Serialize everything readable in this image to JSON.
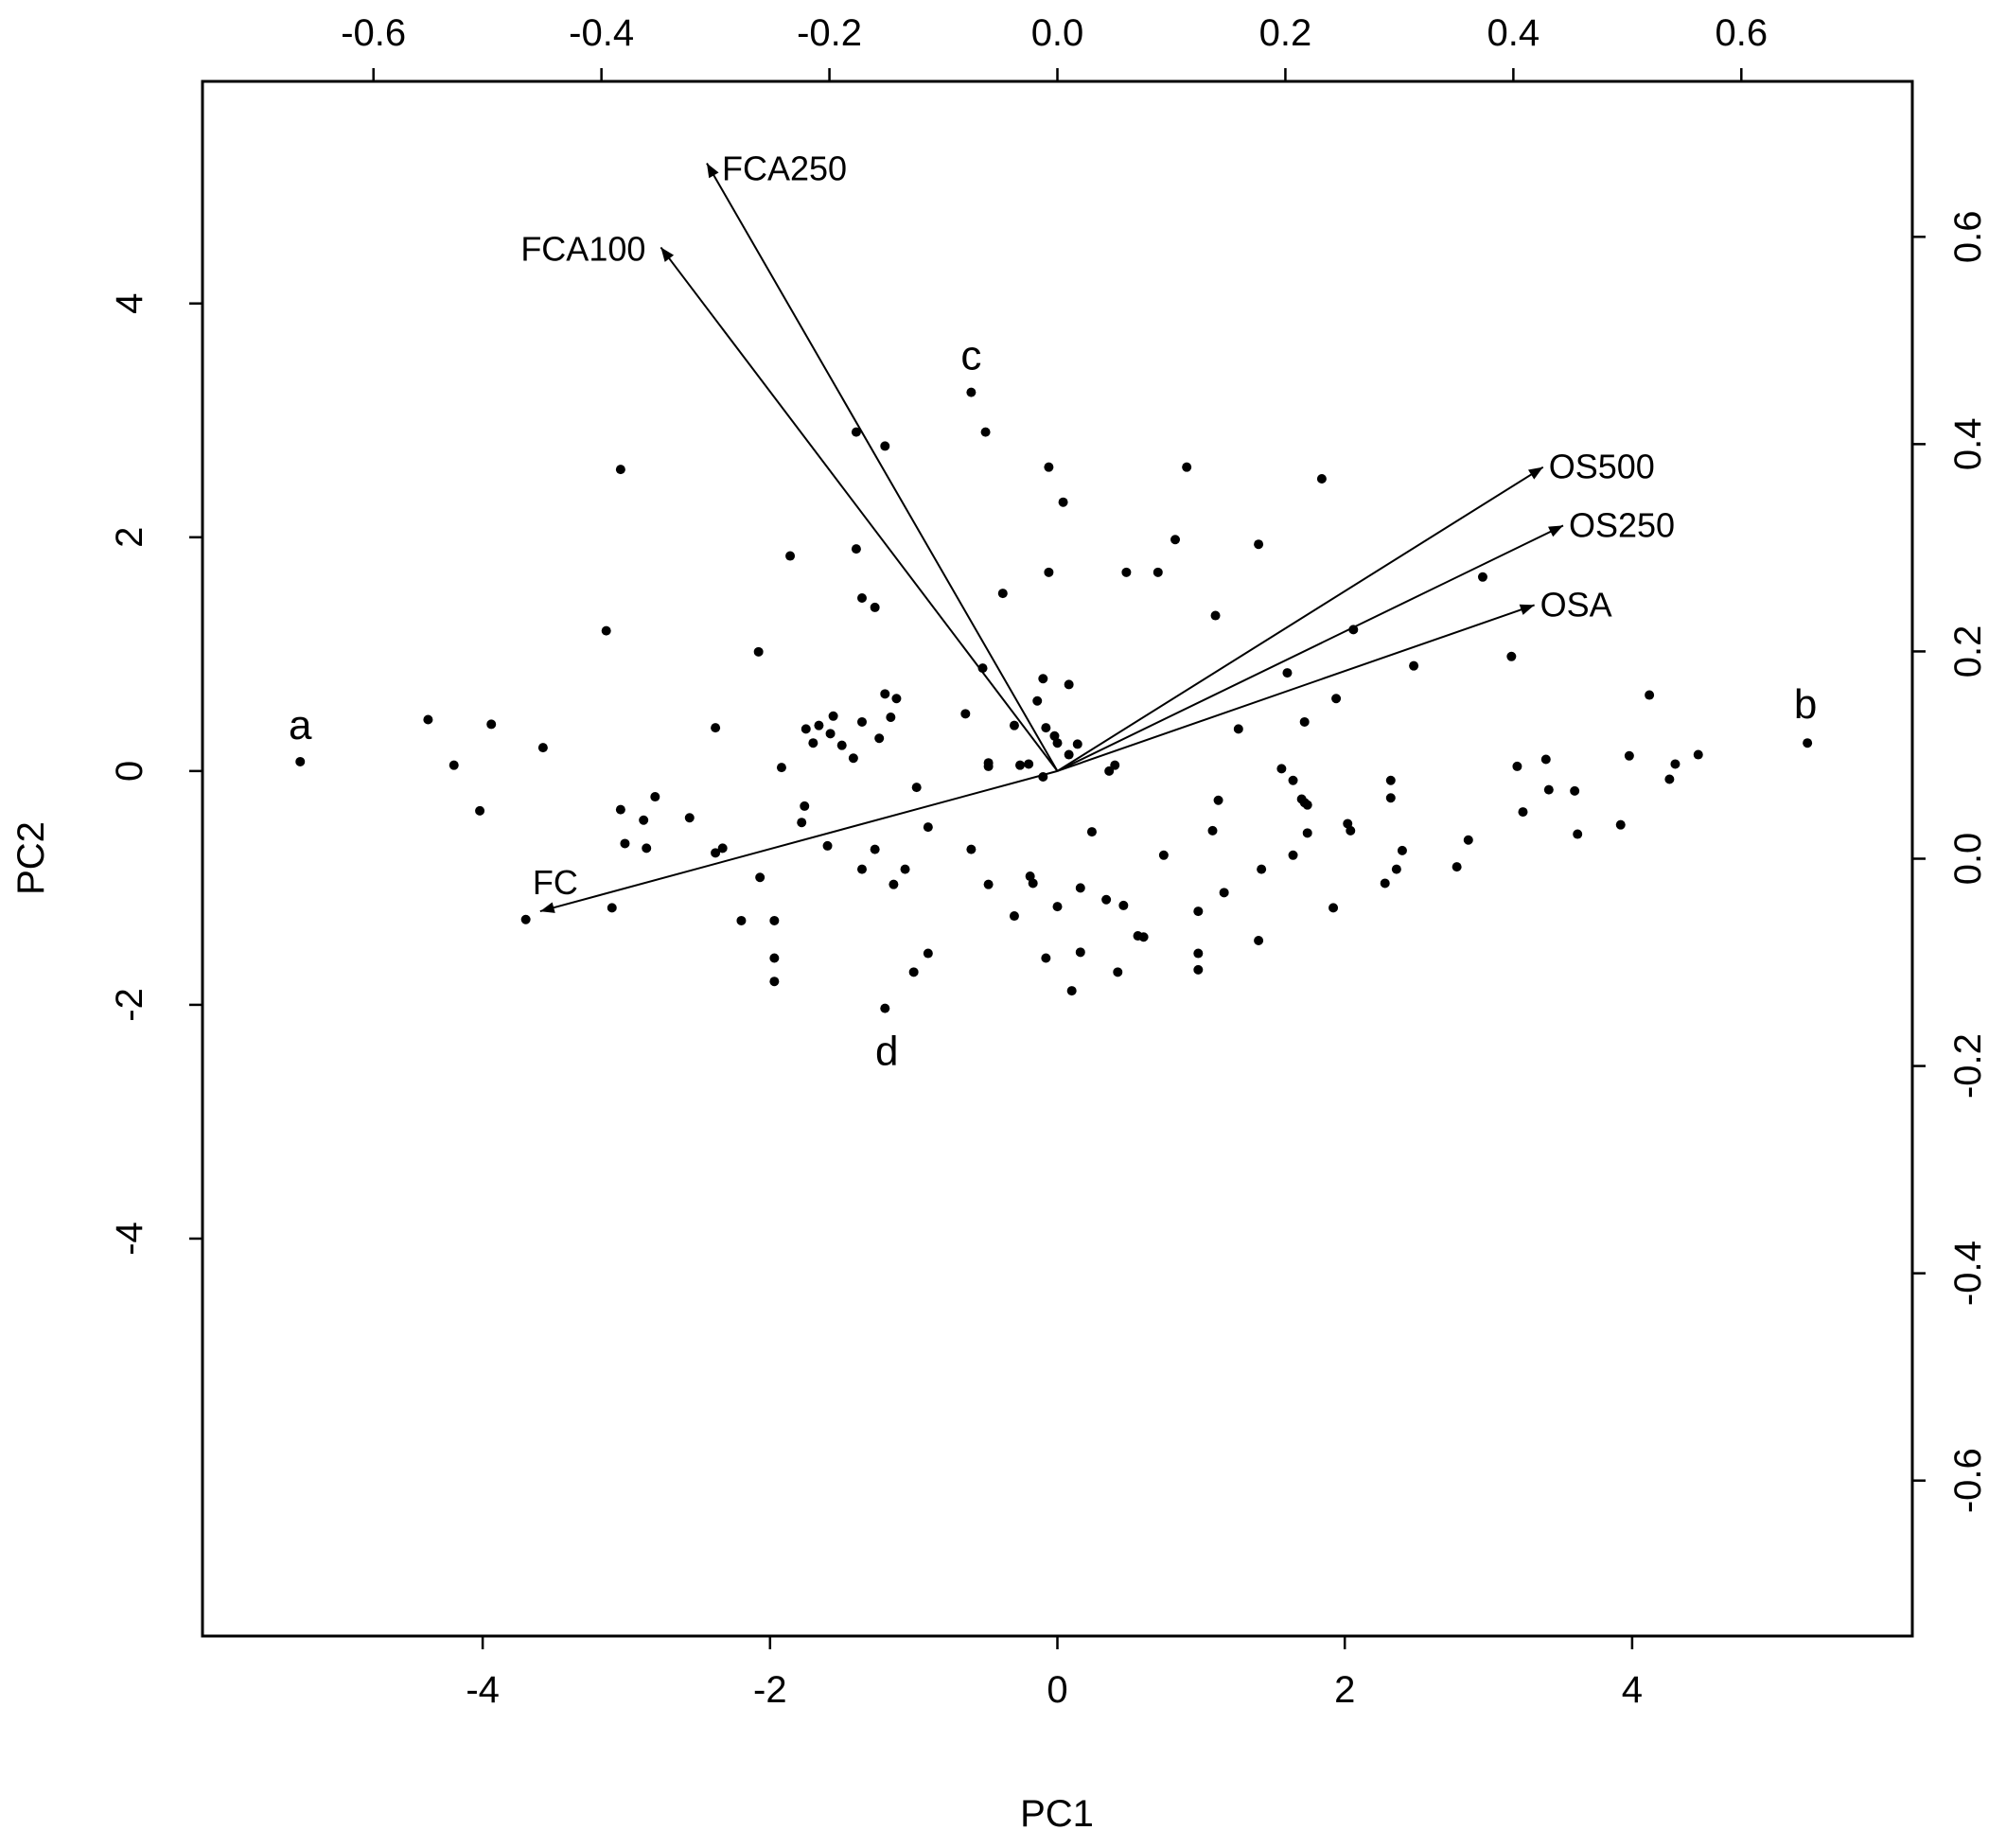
{
  "chart_data": {
    "type": "scatter",
    "subtype": "PCA biplot",
    "title": "",
    "xlabel": "PC1",
    "ylabel": "PC2",
    "xlim": [
      -5.95,
      5.95
    ],
    "ylim": [
      -7.4,
      5.9
    ],
    "xticks": [
      -4,
      -2,
      0,
      2,
      4
    ],
    "yticks": [
      -4,
      -2,
      0,
      2,
      4
    ],
    "top_axis": {
      "lim": [
        -0.75,
        0.75
      ],
      "ticks": [
        -0.6,
        -0.4,
        -0.2,
        0.0,
        0.2,
        0.4,
        0.6
      ]
    },
    "right_axis": {
      "lim": [
        -0.75,
        0.75
      ],
      "ticks": [
        -0.6,
        -0.4,
        -0.2,
        0.0,
        0.2,
        0.4,
        0.6
      ]
    },
    "grid": false,
    "points": [
      [
        -5.27,
        0.08
      ],
      [
        -4.38,
        0.44
      ],
      [
        -4.2,
        0.05
      ],
      [
        -4.02,
        -0.34
      ],
      [
        -3.94,
        0.4
      ],
      [
        -3.58,
        0.2
      ],
      [
        -3.7,
        -1.27
      ],
      [
        -3.14,
        1.2
      ],
      [
        -3.1,
        -1.17
      ],
      [
        -3.04,
        2.58
      ],
      [
        -3.04,
        -0.33
      ],
      [
        -3.01,
        -0.62
      ],
      [
        -2.88,
        -0.42
      ],
      [
        -2.86,
        -0.66
      ],
      [
        -2.8,
        -0.22
      ],
      [
        -2.56,
        -0.4
      ],
      [
        -2.38,
        0.37
      ],
      [
        -2.38,
        -0.7
      ],
      [
        -2.33,
        -0.66
      ],
      [
        -2.2,
        -1.28
      ],
      [
        -2.08,
        1.02
      ],
      [
        -2.07,
        -0.91
      ],
      [
        -1.97,
        -1.28
      ],
      [
        -1.97,
        -1.6
      ],
      [
        -1.97,
        -1.8
      ],
      [
        -1.92,
        0.03
      ],
      [
        -1.86,
        1.84
      ],
      [
        -1.78,
        -0.44
      ],
      [
        -1.76,
        -0.3
      ],
      [
        -1.75,
        0.36
      ],
      [
        -1.7,
        0.24
      ],
      [
        -1.66,
        0.39
      ],
      [
        -1.6,
        -0.64
      ],
      [
        -1.58,
        0.32
      ],
      [
        -1.56,
        0.47
      ],
      [
        -1.5,
        0.22
      ],
      [
        -1.42,
        0.11
      ],
      [
        -1.4,
        2.9
      ],
      [
        -1.4,
        1.9
      ],
      [
        -1.36,
        1.48
      ],
      [
        -1.36,
        0.42
      ],
      [
        -1.36,
        -0.84
      ],
      [
        -1.27,
        1.4
      ],
      [
        -1.27,
        -0.67
      ],
      [
        -1.24,
        0.28
      ],
      [
        -1.2,
        0.66
      ],
      [
        -1.2,
        2.78
      ],
      [
        -1.16,
        0.46
      ],
      [
        -1.14,
        -0.97
      ],
      [
        -1.12,
        0.62
      ],
      [
        -1.06,
        -0.84
      ],
      [
        -1.0,
        -1.72
      ],
      [
        -0.98,
        -0.14
      ],
      [
        -0.9,
        -1.56
      ],
      [
        -0.9,
        -0.48
      ],
      [
        -0.64,
        0.49
      ],
      [
        -0.6,
        3.24
      ],
      [
        -0.6,
        -0.67
      ],
      [
        -0.52,
        0.88
      ],
      [
        -0.5,
        2.9
      ],
      [
        -0.48,
        0.07
      ],
      [
        -0.48,
        0.04
      ],
      [
        -0.48,
        -0.97
      ],
      [
        -0.38,
        1.52
      ],
      [
        -0.3,
        0.39
      ],
      [
        -0.3,
        -1.24
      ],
      [
        -0.26,
        0.05
      ],
      [
        -0.2,
        0.06
      ],
      [
        -0.19,
        -0.9
      ],
      [
        -0.17,
        -0.96
      ],
      [
        -0.14,
        0.6
      ],
      [
        -0.1,
        0.79
      ],
      [
        -0.08,
        0.37
      ],
      [
        -0.1,
        -0.05
      ],
      [
        -0.08,
        -1.6
      ],
      [
        -0.06,
        2.6
      ],
      [
        -0.06,
        1.7
      ],
      [
        -0.02,
        0.3
      ],
      [
        0.0,
        -1.16
      ],
      [
        0.0,
        0.24
      ],
      [
        0.04,
        2.3
      ],
      [
        0.08,
        0.74
      ],
      [
        0.08,
        0.14
      ],
      [
        0.1,
        -1.88
      ],
      [
        0.14,
        0.23
      ],
      [
        0.16,
        -1.55
      ],
      [
        0.16,
        -1.0
      ],
      [
        0.24,
        -0.52
      ],
      [
        0.34,
        -1.1
      ],
      [
        0.36,
        -0.0
      ],
      [
        0.4,
        0.05
      ],
      [
        0.42,
        -1.72
      ],
      [
        0.46,
        -1.15
      ],
      [
        0.48,
        1.7
      ],
      [
        0.56,
        -1.41
      ],
      [
        0.6,
        -1.42
      ],
      [
        0.7,
        1.7
      ],
      [
        0.74,
        -0.72
      ],
      [
        0.82,
        1.98
      ],
      [
        0.9,
        2.6
      ],
      [
        0.98,
        -1.2
      ],
      [
        0.98,
        -1.56
      ],
      [
        0.98,
        -1.7
      ],
      [
        1.08,
        -0.51
      ],
      [
        1.1,
        1.33
      ],
      [
        1.12,
        -0.25
      ],
      [
        1.16,
        -1.04
      ],
      [
        1.26,
        0.36
      ],
      [
        1.4,
        1.94
      ],
      [
        1.4,
        -1.45
      ],
      [
        1.42,
        -0.84
      ],
      [
        1.56,
        0.02
      ],
      [
        1.6,
        0.84
      ],
      [
        1.64,
        -0.08
      ],
      [
        1.64,
        -0.72
      ],
      [
        1.7,
        -0.24
      ],
      [
        1.72,
        0.42
      ],
      [
        1.72,
        -0.27
      ],
      [
        1.74,
        -0.53
      ],
      [
        1.74,
        -0.29
      ],
      [
        1.84,
        2.5
      ],
      [
        1.92,
        -1.17
      ],
      [
        1.94,
        0.62
      ],
      [
        2.02,
        -0.45
      ],
      [
        2.04,
        -0.51
      ],
      [
        2.06,
        1.21
      ],
      [
        2.28,
        -0.96
      ],
      [
        2.32,
        -0.08
      ],
      [
        2.32,
        -0.23
      ],
      [
        2.36,
        -0.84
      ],
      [
        2.4,
        -0.68
      ],
      [
        2.48,
        0.9
      ],
      [
        2.78,
        -0.82
      ],
      [
        2.86,
        -0.59
      ],
      [
        2.96,
        1.66
      ],
      [
        3.16,
        0.98
      ],
      [
        3.2,
        0.04
      ],
      [
        3.24,
        -0.35
      ],
      [
        3.4,
        0.1
      ],
      [
        3.42,
        -0.16
      ],
      [
        3.6,
        -0.17
      ],
      [
        3.62,
        -0.54
      ],
      [
        3.92,
        -0.46
      ],
      [
        3.98,
        0.13
      ],
      [
        4.12,
        0.65
      ],
      [
        4.26,
        -0.07
      ],
      [
        4.3,
        0.06
      ],
      [
        4.46,
        0.14
      ],
      [
        5.22,
        0.24
      ],
      [
        -1.2,
        -2.03
      ]
    ],
    "annotations": [
      {
        "text": "a",
        "x": -5.27,
        "y": 0.08
      },
      {
        "text": "b",
        "x": 5.22,
        "y": 0.24
      },
      {
        "text": "c",
        "x": -0.6,
        "y": 3.24
      },
      {
        "text": "d",
        "x": -1.2,
        "y": -2.03
      }
    ],
    "loadings": [
      {
        "name": "FCA250",
        "x": -2.44,
        "y": 5.2
      },
      {
        "name": "FCA100",
        "x": -2.76,
        "y": 4.48
      },
      {
        "name": "OS500",
        "x": 3.38,
        "y": 2.6
      },
      {
        "name": "OS250",
        "x": 3.52,
        "y": 2.1
      },
      {
        "name": "OSA",
        "x": 3.32,
        "y": 1.42
      },
      {
        "name": "FC",
        "x": -3.6,
        "y": -1.2
      }
    ]
  }
}
